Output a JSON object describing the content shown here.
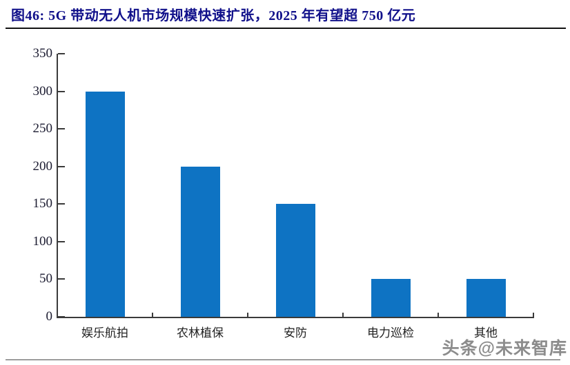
{
  "header": {
    "title": "图46: 5G 带动无人机市场规模快速扩张，2025 年有望超 750 亿元"
  },
  "watermark": "头条@未来智库",
  "colors": {
    "bar": "#0E73C3",
    "title": "#10108A",
    "axis": "#3a3a3a",
    "tick_label": "#1b1b30",
    "watermark": "#8c8c8c"
  },
  "chart_data": {
    "type": "bar",
    "categories": [
      "娱乐航拍",
      "农林植保",
      "安防",
      "电力巡检",
      "其他"
    ],
    "values": [
      300,
      200,
      150,
      50,
      50
    ],
    "title": "5G 带动无人机市场规模快速扩张，2025 年有望超 750 亿元",
    "xlabel": "",
    "ylabel": "",
    "ylim": [
      0,
      350
    ],
    "yticks": [
      0,
      50,
      100,
      150,
      200,
      250,
      300,
      350
    ],
    "grid": false,
    "legend": false,
    "bar_color": "#0E73C3"
  }
}
